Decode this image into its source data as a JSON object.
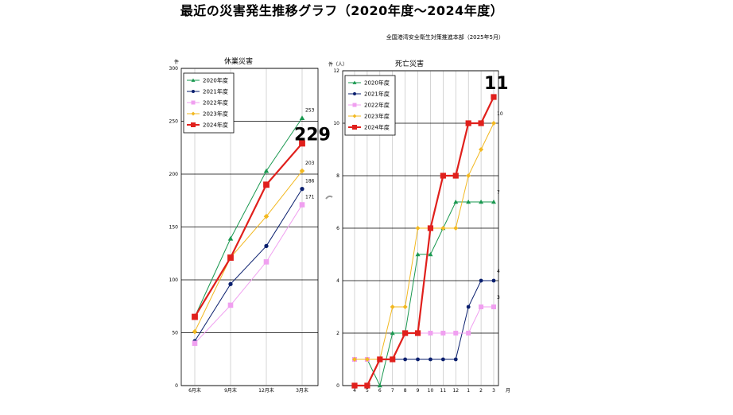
{
  "title": "最近の災害発生推移グラフ（2020年度～2024年度）",
  "subtitle": "全国港湾安全衛生対策推進本部（2025年5月）",
  "colors": {
    "2020年度": "#1a9850",
    "2021年度": "#0a1f6e",
    "2022年度": "#f0a0f0",
    "2023年度": "#f2b820",
    "2024年度": "#e0201c"
  },
  "chart_data": [
    {
      "type": "line",
      "title": "休業災害",
      "ylabel": "件",
      "ylim": [
        0,
        300
      ],
      "yticks": [
        "0",
        "50",
        "100",
        "150",
        "200",
        "250",
        "300"
      ],
      "categories": [
        "6月末",
        "9月末",
        "12月末",
        "3月末"
      ],
      "legend": "top-left",
      "grid": true,
      "series": [
        {
          "name": "2020年度",
          "values": [
            65,
            139,
            203,
            253
          ],
          "marker": "triangle"
        },
        {
          "name": "2021年度",
          "values": [
            42,
            96,
            132,
            186
          ],
          "marker": "circle"
        },
        {
          "name": "2022年度",
          "values": [
            40,
            76,
            117,
            171
          ],
          "marker": "square"
        },
        {
          "name": "2023年度",
          "values": [
            51,
            121,
            160,
            203
          ],
          "marker": "diamond"
        },
        {
          "name": "2024年度",
          "values": [
            65,
            121,
            190,
            229
          ],
          "marker": "square"
        }
      ],
      "end_labels": [
        {
          "series": "2020年度",
          "text": "253"
        },
        {
          "series": "2023年度",
          "text": "203"
        },
        {
          "series": "2021年度",
          "text": "186"
        },
        {
          "series": "2022年度",
          "text": "171"
        }
      ],
      "highlight_label": {
        "series": "2024年度",
        "text": "229"
      }
    },
    {
      "type": "line",
      "title": "死亡災害",
      "ylabel": "件（人）",
      "xunit": "月",
      "ylim": [
        0,
        12
      ],
      "yticks": [
        "0",
        "2",
        "4",
        "6",
        "8",
        "10",
        "12"
      ],
      "categories": [
        "4",
        "5",
        "6",
        "7",
        "8",
        "9",
        "10",
        "11",
        "12",
        "1",
        "2",
        "3"
      ],
      "legend": "top-left",
      "grid": true,
      "series": [
        {
          "name": "2020年度",
          "values": [
            1,
            1,
            0,
            2,
            2,
            5,
            5,
            6,
            7,
            7,
            7,
            7
          ],
          "marker": "triangle"
        },
        {
          "name": "2021年度",
          "values": [
            1,
            1,
            1,
            1,
            1,
            1,
            1,
            1,
            1,
            3,
            4,
            4
          ],
          "marker": "circle"
        },
        {
          "name": "2022年度",
          "values": [
            1,
            1,
            1,
            1,
            2,
            2,
            2,
            2,
            2,
            2,
            3,
            3
          ],
          "marker": "square"
        },
        {
          "name": "2023年度",
          "values": [
            1,
            1,
            1,
            3,
            3,
            6,
            6,
            6,
            6,
            8,
            9,
            10
          ],
          "marker": "diamond"
        },
        {
          "name": "2024年度",
          "values": [
            0,
            0,
            1,
            1,
            2,
            2,
            6,
            8,
            8,
            10,
            10,
            11
          ],
          "marker": "square"
        }
      ],
      "end_labels": [
        {
          "series": "2023年度",
          "text": "10"
        },
        {
          "series": "2020年度",
          "text": "7"
        },
        {
          "series": "2021年度",
          "text": "4"
        },
        {
          "series": "2022年度",
          "text": "3"
        }
      ],
      "highlight_label": {
        "series": "2024年度",
        "text": "11"
      }
    }
  ]
}
